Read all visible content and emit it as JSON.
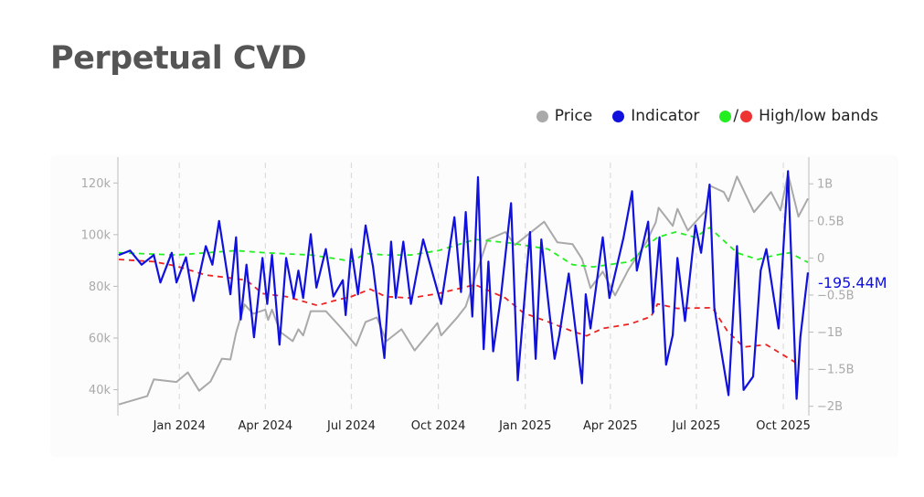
{
  "title": "Perpetual CVD",
  "legend": {
    "price": "Price",
    "indicator": "Indicator",
    "bands_sep": "/",
    "bands": "High/low bands"
  },
  "colors": {
    "price": "#a9a9a9",
    "indicator": "#1111dd",
    "high_band": "#22ee22",
    "low_band": "#ee2222"
  },
  "chart_data": {
    "type": "line",
    "title": "Perpetual CVD",
    "x_range": [
      "2023-10-28",
      "2025-10-28"
    ],
    "x_ticks": [
      {
        "date": "2024-01-01",
        "label": "Jan 2024"
      },
      {
        "date": "2024-04-01",
        "label": "Apr 2024"
      },
      {
        "date": "2024-07-01",
        "label": "Jul 2024"
      },
      {
        "date": "2024-10-01",
        "label": "Oct 2024"
      },
      {
        "date": "2025-01-01",
        "label": "Jan 2025"
      },
      {
        "date": "2025-04-01",
        "label": "Apr 2025"
      },
      {
        "date": "2025-07-01",
        "label": "Jul 2025"
      },
      {
        "date": "2025-10-01",
        "label": "Oct 2025"
      }
    ],
    "y_left": {
      "range": [
        31000,
        130000
      ],
      "ticks": [
        {
          "v": 40000,
          "label": "40k"
        },
        {
          "v": 60000,
          "label": "60k"
        },
        {
          "v": 80000,
          "label": "80k"
        },
        {
          "v": 100000,
          "label": "100k"
        },
        {
          "v": 120000,
          "label": "120k"
        }
      ]
    },
    "y_right": {
      "range": [
        -2.09,
        1.36
      ],
      "unit": "B",
      "ticks": [
        {
          "v": 1,
          "label": "1B"
        },
        {
          "v": 0.5,
          "label": "0.5B"
        },
        {
          "v": 0,
          "label": "0"
        },
        {
          "v": -0.5,
          "label": "−0.5B"
        },
        {
          "v": -1,
          "label": "−1B"
        },
        {
          "v": -1.5,
          "label": "−1.5B"
        },
        {
          "v": -2,
          "label": "−2B"
        }
      ]
    },
    "grid": "vertical dashed",
    "legend_position": "top-right",
    "last_value_label": "-195.44M",
    "series": [
      {
        "name": "Price",
        "axis": "left",
        "points": [
          [
            "2023-10-29",
            34300
          ],
          [
            "2023-11-28",
            37500
          ],
          [
            "2023-12-05",
            44000
          ],
          [
            "2023-12-29",
            43000
          ],
          [
            "2024-01-10",
            46700
          ],
          [
            "2024-01-22",
            39600
          ],
          [
            "2024-02-03",
            43200
          ],
          [
            "2024-02-15",
            52000
          ],
          [
            "2024-02-24",
            51700
          ],
          [
            "2024-03-01",
            62000
          ],
          [
            "2024-03-10",
            73000
          ],
          [
            "2024-03-19",
            69400
          ],
          [
            "2024-04-01",
            71000
          ],
          [
            "2024-04-04",
            67000
          ],
          [
            "2024-04-08",
            71000
          ],
          [
            "2024-04-17",
            62300
          ],
          [
            "2024-04-30",
            58800
          ],
          [
            "2024-05-06",
            63400
          ],
          [
            "2024-05-11",
            61000
          ],
          [
            "2024-05-19",
            70400
          ],
          [
            "2024-06-04",
            70400
          ],
          [
            "2024-06-19",
            64400
          ],
          [
            "2024-06-27",
            61000
          ],
          [
            "2024-07-06",
            57000
          ],
          [
            "2024-07-16",
            66200
          ],
          [
            "2024-07-28",
            68000
          ],
          [
            "2024-08-07",
            58800
          ],
          [
            "2024-08-23",
            63400
          ],
          [
            "2024-09-06",
            55200
          ],
          [
            "2024-09-30",
            65800
          ],
          [
            "2024-10-04",
            61000
          ],
          [
            "2024-10-21",
            68000
          ],
          [
            "2024-10-30",
            72200
          ],
          [
            "2024-11-09",
            83500
          ],
          [
            "2024-11-22",
            98000
          ],
          [
            "2024-12-11",
            101000
          ],
          [
            "2024-12-21",
            96000
          ],
          [
            "2025-01-21",
            105000
          ],
          [
            "2025-02-04",
            97000
          ],
          [
            "2025-02-20",
            96300
          ],
          [
            "2025-03-02",
            90600
          ],
          [
            "2025-03-11",
            79300
          ],
          [
            "2025-03-24",
            85700
          ],
          [
            "2025-04-06",
            76500
          ],
          [
            "2025-04-20",
            86400
          ],
          [
            "2025-05-09",
            97000
          ],
          [
            "2025-05-19",
            104800
          ],
          [
            "2025-05-22",
            110400
          ],
          [
            "2025-06-06",
            103400
          ],
          [
            "2025-06-11",
            110000
          ],
          [
            "2025-06-22",
            101600
          ],
          [
            "2025-07-11",
            109400
          ],
          [
            "2025-07-15",
            119000
          ],
          [
            "2025-07-30",
            116500
          ],
          [
            "2025-08-04",
            113000
          ],
          [
            "2025-08-13",
            122500
          ],
          [
            "2025-08-31",
            108700
          ],
          [
            "2025-09-18",
            116500
          ],
          [
            "2025-09-28",
            109400
          ],
          [
            "2025-10-06",
            123500
          ],
          [
            "2025-10-17",
            107000
          ],
          [
            "2025-10-27",
            114000
          ]
        ]
      },
      {
        "name": "Indicator",
        "axis": "right",
        "points": [
          [
            "2023-10-29",
            0.04
          ],
          [
            "2023-11-10",
            0.1
          ],
          [
            "2023-11-22",
            -0.09
          ],
          [
            "2023-12-05",
            0.04
          ],
          [
            "2023-12-12",
            -0.33
          ],
          [
            "2023-12-24",
            0.07
          ],
          [
            "2023-12-29",
            -0.33
          ],
          [
            "2024-01-08",
            0.01
          ],
          [
            "2024-01-16",
            -0.58
          ],
          [
            "2024-01-22",
            -0.25
          ],
          [
            "2024-01-29",
            0.16
          ],
          [
            "2024-02-05",
            -0.09
          ],
          [
            "2024-02-12",
            0.5
          ],
          [
            "2024-02-24",
            -0.49
          ],
          [
            "2024-03-01",
            0.28
          ],
          [
            "2024-03-06",
            -0.83
          ],
          [
            "2024-03-12",
            -0.09
          ],
          [
            "2024-03-20",
            -1.07
          ],
          [
            "2024-03-29",
            0.0
          ],
          [
            "2024-04-03",
            -0.62
          ],
          [
            "2024-04-08",
            0.04
          ],
          [
            "2024-04-16",
            -1.17
          ],
          [
            "2024-04-23",
            0.0
          ],
          [
            "2024-05-01",
            -0.54
          ],
          [
            "2024-05-06",
            -0.17
          ],
          [
            "2024-05-11",
            -0.54
          ],
          [
            "2024-05-19",
            0.32
          ],
          [
            "2024-05-25",
            -0.4
          ],
          [
            "2024-06-04",
            0.12
          ],
          [
            "2024-06-12",
            -0.52
          ],
          [
            "2024-06-22",
            -0.3
          ],
          [
            "2024-06-25",
            -0.77
          ],
          [
            "2024-07-01",
            0.12
          ],
          [
            "2024-07-08",
            -0.49
          ],
          [
            "2024-07-16",
            0.44
          ],
          [
            "2024-07-24",
            -0.12
          ],
          [
            "2024-08-05",
            -1.35
          ],
          [
            "2024-08-12",
            0.22
          ],
          [
            "2024-08-17",
            -0.54
          ],
          [
            "2024-08-25",
            0.22
          ],
          [
            "2024-09-02",
            -0.62
          ],
          [
            "2024-09-15",
            0.25
          ],
          [
            "2024-10-04",
            -0.62
          ],
          [
            "2024-10-18",
            0.55
          ],
          [
            "2024-10-25",
            -0.46
          ],
          [
            "2024-10-30",
            0.62
          ],
          [
            "2024-11-06",
            -0.79
          ],
          [
            "2024-11-12",
            1.09
          ],
          [
            "2024-11-18",
            -1.23
          ],
          [
            "2024-11-23",
            -0.05
          ],
          [
            "2024-11-28",
            -1.26
          ],
          [
            "2024-12-06",
            -0.54
          ],
          [
            "2024-12-17",
            0.74
          ],
          [
            "2024-12-24",
            -1.65
          ],
          [
            "2025-01-06",
            0.35
          ],
          [
            "2025-01-12",
            -1.36
          ],
          [
            "2025-01-18",
            0.25
          ],
          [
            "2025-02-01",
            -1.36
          ],
          [
            "2025-02-06",
            -1.04
          ],
          [
            "2025-02-16",
            -0.21
          ],
          [
            "2025-03-02",
            -1.69
          ],
          [
            "2025-03-06",
            -0.49
          ],
          [
            "2025-03-11",
            -0.95
          ],
          [
            "2025-03-24",
            0.28
          ],
          [
            "2025-03-31",
            -0.54
          ],
          [
            "2025-04-15",
            0.28
          ],
          [
            "2025-04-24",
            0.9
          ],
          [
            "2025-04-29",
            -0.17
          ],
          [
            "2025-05-11",
            0.49
          ],
          [
            "2025-05-16",
            -0.74
          ],
          [
            "2025-05-23",
            0.28
          ],
          [
            "2025-05-30",
            -1.44
          ],
          [
            "2025-06-06",
            -1.04
          ],
          [
            "2025-06-11",
            0.0
          ],
          [
            "2025-06-19",
            -0.85
          ],
          [
            "2025-06-30",
            0.44
          ],
          [
            "2025-07-06",
            0.07
          ],
          [
            "2025-07-15",
            0.99
          ],
          [
            "2025-07-20",
            -0.67
          ],
          [
            "2025-07-27",
            -1.23
          ],
          [
            "2025-08-04",
            -1.85
          ],
          [
            "2025-08-13",
            0.16
          ],
          [
            "2025-08-20",
            -1.78
          ],
          [
            "2025-08-30",
            -1.6
          ],
          [
            "2025-09-07",
            -0.17
          ],
          [
            "2025-09-13",
            0.12
          ],
          [
            "2025-09-26",
            -0.95
          ],
          [
            "2025-10-06",
            1.17
          ],
          [
            "2025-10-15",
            -1.9
          ],
          [
            "2025-10-19",
            -1.07
          ],
          [
            "2025-10-27",
            -0.195
          ]
        ]
      },
      {
        "name": "High band",
        "axis": "right",
        "points": [
          [
            "2023-10-29",
            0.07
          ],
          [
            "2023-12-29",
            0.04
          ],
          [
            "2024-03-01",
            0.1
          ],
          [
            "2024-04-01",
            0.07
          ],
          [
            "2024-05-19",
            0.04
          ],
          [
            "2024-06-20",
            -0.02
          ],
          [
            "2024-07-01",
            -0.05
          ],
          [
            "2024-07-16",
            0.06
          ],
          [
            "2024-08-06",
            0.04
          ],
          [
            "2024-09-02",
            0.04
          ],
          [
            "2024-10-01",
            0.1
          ],
          [
            "2024-11-09",
            0.25
          ],
          [
            "2024-12-17",
            0.2
          ],
          [
            "2025-01-25",
            0.12
          ],
          [
            "2025-02-20",
            -0.09
          ],
          [
            "2025-03-14",
            -0.12
          ],
          [
            "2025-04-22",
            -0.05
          ],
          [
            "2025-05-14",
            0.21
          ],
          [
            "2025-05-21",
            0.28
          ],
          [
            "2025-06-09",
            0.35
          ],
          [
            "2025-06-30",
            0.28
          ],
          [
            "2025-07-15",
            0.41
          ],
          [
            "2025-08-13",
            0.07
          ],
          [
            "2025-09-04",
            -0.02
          ],
          [
            "2025-09-23",
            0.04
          ],
          [
            "2025-10-08",
            0.07
          ],
          [
            "2025-10-27",
            -0.06
          ]
        ]
      },
      {
        "name": "Low band",
        "axis": "right",
        "points": [
          [
            "2023-10-29",
            -0.02
          ],
          [
            "2023-12-05",
            -0.05
          ],
          [
            "2023-12-29",
            -0.11
          ],
          [
            "2024-01-29",
            -0.23
          ],
          [
            "2024-02-24",
            -0.27
          ],
          [
            "2024-03-12",
            -0.3
          ],
          [
            "2024-03-29",
            -0.48
          ],
          [
            "2024-04-23",
            -0.52
          ],
          [
            "2024-05-26",
            -0.64
          ],
          [
            "2024-06-12",
            -0.58
          ],
          [
            "2024-07-01",
            -0.52
          ],
          [
            "2024-07-21",
            -0.42
          ],
          [
            "2024-08-06",
            -0.52
          ],
          [
            "2024-09-02",
            -0.54
          ],
          [
            "2024-10-01",
            -0.48
          ],
          [
            "2024-11-09",
            -0.36
          ],
          [
            "2024-12-11",
            -0.54
          ],
          [
            "2024-12-30",
            -0.74
          ],
          [
            "2025-01-25",
            -0.86
          ],
          [
            "2025-02-20",
            -0.99
          ],
          [
            "2025-03-07",
            -1.05
          ],
          [
            "2025-03-24",
            -0.95
          ],
          [
            "2025-04-22",
            -0.89
          ],
          [
            "2025-05-14",
            -0.79
          ],
          [
            "2025-05-21",
            -0.62
          ],
          [
            "2025-06-11",
            -0.68
          ],
          [
            "2025-07-18",
            -0.67
          ],
          [
            "2025-08-03",
            -0.99
          ],
          [
            "2025-08-20",
            -1.2
          ],
          [
            "2025-09-13",
            -1.17
          ],
          [
            "2025-10-14",
            -1.41
          ]
        ]
      }
    ]
  }
}
